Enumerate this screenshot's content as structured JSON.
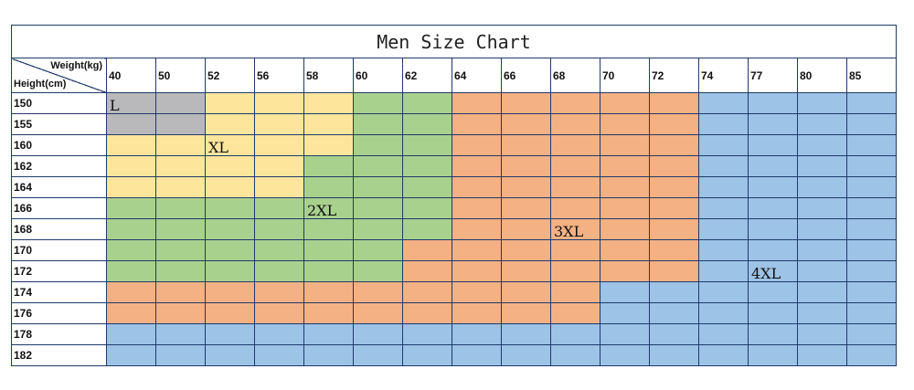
{
  "title": "Men Size Chart",
  "axis": {
    "weight_label": "Weight(kg)",
    "height_label": "Height(cm)"
  },
  "weights": [
    "40",
    "50",
    "52",
    "56",
    "58",
    "60",
    "62",
    "64",
    "66",
    "68",
    "70",
    "72",
    "74",
    "77",
    "80",
    "85"
  ],
  "heights": [
    "150",
    "155",
    "160",
    "162",
    "164",
    "166",
    "168",
    "170",
    "172",
    "174",
    "176",
    "178",
    "182"
  ],
  "zone_colors": {
    "L": "#b9b9bb",
    "XL": "#fde69b",
    "2XL": "#a9d18e",
    "3XL": "#f4b183",
    "4XL": "#9dc3e6"
  },
  "grid": [
    [
      "L",
      "L",
      "XL",
      "XL",
      "XL",
      "2XL",
      "2XL",
      "3XL",
      "3XL",
      "3XL",
      "3XL",
      "3XL",
      "4XL",
      "4XL",
      "4XL",
      "4XL"
    ],
    [
      "L",
      "L",
      "XL",
      "XL",
      "XL",
      "2XL",
      "2XL",
      "3XL",
      "3XL",
      "3XL",
      "3XL",
      "3XL",
      "4XL",
      "4XL",
      "4XL",
      "4XL"
    ],
    [
      "XL",
      "XL",
      "XL",
      "XL",
      "XL",
      "2XL",
      "2XL",
      "3XL",
      "3XL",
      "3XL",
      "3XL",
      "3XL",
      "4XL",
      "4XL",
      "4XL",
      "4XL"
    ],
    [
      "XL",
      "XL",
      "XL",
      "XL",
      "2XL",
      "2XL",
      "2XL",
      "3XL",
      "3XL",
      "3XL",
      "3XL",
      "3XL",
      "4XL",
      "4XL",
      "4XL",
      "4XL"
    ],
    [
      "XL",
      "XL",
      "XL",
      "XL",
      "2XL",
      "2XL",
      "2XL",
      "3XL",
      "3XL",
      "3XL",
      "3XL",
      "3XL",
      "4XL",
      "4XL",
      "4XL",
      "4XL"
    ],
    [
      "2XL",
      "2XL",
      "2XL",
      "2XL",
      "2XL",
      "2XL",
      "2XL",
      "3XL",
      "3XL",
      "3XL",
      "3XL",
      "3XL",
      "4XL",
      "4XL",
      "4XL",
      "4XL"
    ],
    [
      "2XL",
      "2XL",
      "2XL",
      "2XL",
      "2XL",
      "2XL",
      "2XL",
      "3XL",
      "3XL",
      "3XL",
      "3XL",
      "3XL",
      "4XL",
      "4XL",
      "4XL",
      "4XL"
    ],
    [
      "2XL",
      "2XL",
      "2XL",
      "2XL",
      "2XL",
      "2XL",
      "3XL",
      "3XL",
      "3XL",
      "3XL",
      "3XL",
      "3XL",
      "4XL",
      "4XL",
      "4XL",
      "4XL"
    ],
    [
      "2XL",
      "2XL",
      "2XL",
      "2XL",
      "2XL",
      "2XL",
      "3XL",
      "3XL",
      "3XL",
      "3XL",
      "3XL",
      "3XL",
      "4XL",
      "4XL",
      "4XL",
      "4XL"
    ],
    [
      "3XL",
      "3XL",
      "3XL",
      "3XL",
      "3XL",
      "3XL",
      "3XL",
      "3XL",
      "3XL",
      "3XL",
      "4XL",
      "4XL",
      "4XL",
      "4XL",
      "4XL",
      "4XL"
    ],
    [
      "3XL",
      "3XL",
      "3XL",
      "3XL",
      "3XL",
      "3XL",
      "3XL",
      "3XL",
      "3XL",
      "3XL",
      "4XL",
      "4XL",
      "4XL",
      "4XL",
      "4XL",
      "4XL"
    ],
    [
      "4XL",
      "4XL",
      "4XL",
      "4XL",
      "4XL",
      "4XL",
      "4XL",
      "4XL",
      "4XL",
      "4XL",
      "4XL",
      "4XL",
      "4XL",
      "4XL",
      "4XL",
      "4XL"
    ],
    [
      "4XL",
      "4XL",
      "4XL",
      "4XL",
      "4XL",
      "4XL",
      "4XL",
      "4XL",
      "4XL",
      "4XL",
      "4XL",
      "4XL",
      "4XL",
      "4XL",
      "4XL",
      "4XL"
    ]
  ],
  "zone_labels": [
    {
      "text": "L",
      "height": "150",
      "weight": "40"
    },
    {
      "text": "XL",
      "height": "160",
      "weight": "52"
    },
    {
      "text": "2XL",
      "height": "166",
      "weight": "58"
    },
    {
      "text": "3XL",
      "height": "168",
      "weight": "68"
    },
    {
      "text": "4XL",
      "height": "172",
      "weight": "77"
    }
  ]
}
